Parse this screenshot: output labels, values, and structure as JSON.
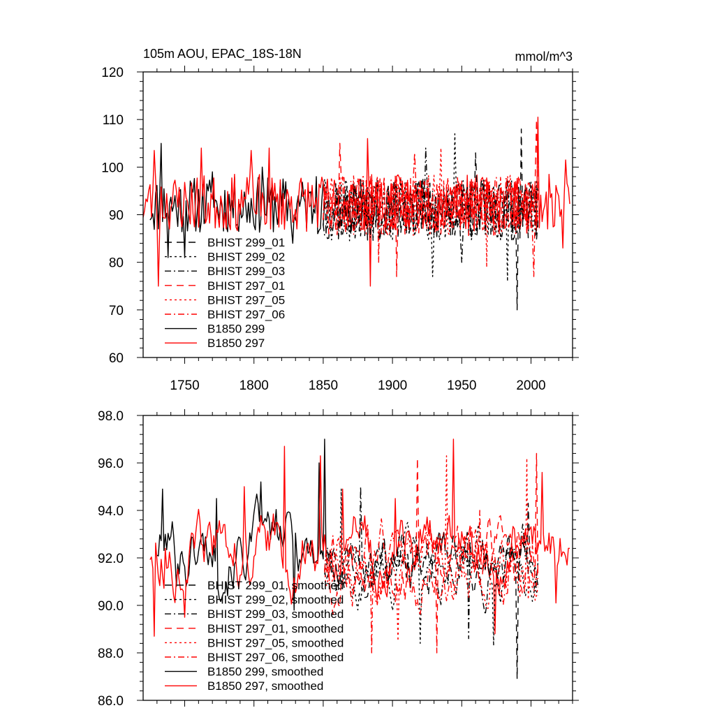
{
  "chart_data": [
    {
      "type": "line",
      "title": "105m AOU, EPAC_18S-18N",
      "units": "mmol/m^3",
      "xlim": [
        1720,
        2030
      ],
      "ylim": [
        60,
        120
      ],
      "xticks": [
        1750,
        1800,
        1850,
        1900,
        1950,
        2000
      ],
      "xtick_labels": [
        "1750",
        "1800",
        "1850",
        "1900",
        "1950",
        "2000"
      ],
      "yticks": [
        60,
        70,
        80,
        90,
        100,
        110,
        120
      ],
      "ytick_labels": [
        "60",
        "70",
        "80",
        "90",
        "100",
        "110",
        "120"
      ],
      "legend_position": "lower-left",
      "legend": [
        {
          "label": "BHIST 299_01",
          "color": "#000000",
          "dash": "long-dash"
        },
        {
          "label": "BHIST 299_02",
          "color": "#000000",
          "dash": "dot"
        },
        {
          "label": "BHIST 299_03",
          "color": "#000000",
          "dash": "dash-dot"
        },
        {
          "label": "BHIST 297_01",
          "color": "#ff0000",
          "dash": "long-dash"
        },
        {
          "label": "BHIST 297_05",
          "color": "#ff0000",
          "dash": "dot"
        },
        {
          "label": "BHIST 297_06",
          "color": "#ff0000",
          "dash": "dash-dot"
        },
        {
          "label": "B1850 299",
          "color": "#000000",
          "dash": "solid"
        },
        {
          "label": "B1850 297",
          "color": "#ff0000",
          "dash": "solid"
        }
      ],
      "series": [
        {
          "name": "B1850 299",
          "color": "#000000",
          "dash": "solid",
          "x_range": [
            1725,
            1850
          ],
          "mean": 92,
          "amplitude": 6,
          "seed": 11,
          "extremes": [
            [
              1733,
              105
            ],
            [
              1738,
              81
            ],
            [
              1750,
              81
            ],
            [
              1770,
              99
            ],
            [
              1806,
              100
            ],
            [
              1828,
              84
            ],
            [
              1845,
              98
            ]
          ]
        },
        {
          "name": "B1850 297",
          "color": "#ff0000",
          "dash": "solid",
          "x_range": [
            1720,
            2028
          ],
          "mean": 92.5,
          "amplitude": 6,
          "seed": 23,
          "extremes": [
            [
              1731,
              75
            ],
            [
              1728,
              103.5
            ],
            [
              1762,
              104
            ],
            [
              1798,
              103.5
            ],
            [
              1811,
              104
            ],
            [
              1882,
              106
            ],
            [
              1884,
              75
            ],
            [
              2005,
              110.5
            ],
            [
              2025,
              101.5
            ],
            [
              2023,
              83
            ]
          ]
        },
        {
          "name": "BHIST 299_01",
          "color": "#000000",
          "dash": "long-dash",
          "x_range": [
            1850,
            2005
          ],
          "mean": 91,
          "amplitude": 6.5,
          "seed": 37,
          "extremes": [
            [
              1960,
              103
            ],
            [
              1990,
              70
            ],
            [
              1993,
              108
            ]
          ]
        },
        {
          "name": "BHIST 299_02",
          "color": "#000000",
          "dash": "dot",
          "x_range": [
            1850,
            2005
          ],
          "mean": 91,
          "amplitude": 6.5,
          "seed": 41,
          "extremes": [
            [
              1945,
              107
            ],
            [
              1929,
              77
            ],
            [
              1983,
              76
            ]
          ]
        },
        {
          "name": "BHIST 299_03",
          "color": "#000000",
          "dash": "dash-dot",
          "x_range": [
            1850,
            2005
          ],
          "mean": 91,
          "amplitude": 6.5,
          "seed": 53,
          "extremes": [
            [
              1924,
              104
            ],
            [
              1950,
              80
            ]
          ]
        },
        {
          "name": "BHIST 297_01",
          "color": "#ff0000",
          "dash": "long-dash",
          "x_range": [
            1850,
            2005
          ],
          "mean": 92,
          "amplitude": 6.5,
          "seed": 61,
          "extremes": [
            [
              1862,
              105
            ],
            [
              1903,
              77
            ],
            [
              2004,
              110
            ]
          ]
        },
        {
          "name": "BHIST 297_05",
          "color": "#ff0000",
          "dash": "dot",
          "x_range": [
            1850,
            2005
          ],
          "mean": 92,
          "amplitude": 6.5,
          "seed": 71,
          "extremes": [
            [
              1935,
              104
            ],
            [
              1968,
              79
            ],
            [
              2005,
              109
            ]
          ]
        },
        {
          "name": "BHIST 297_06",
          "color": "#ff0000",
          "dash": "dash-dot",
          "x_range": [
            1850,
            2005
          ],
          "mean": 92,
          "amplitude": 6.5,
          "seed": 83,
          "extremes": [
            [
              1916,
              103
            ],
            [
              1890,
              80
            ],
            [
              2002,
              77
            ]
          ]
        }
      ]
    },
    {
      "type": "line",
      "title": "",
      "xlim": [
        1720,
        2030
      ],
      "ylim": [
        86,
        98
      ],
      "xticks": [
        1750,
        1800,
        1850,
        1900,
        1950,
        2000
      ],
      "yticks": [
        86,
        88,
        90,
        92,
        94,
        96,
        98
      ],
      "ytick_labels": [
        "86.0",
        "88.0",
        "90.0",
        "92.0",
        "94.0",
        "96.0",
        "98.0"
      ],
      "legend_position": "lower-left",
      "legend": [
        {
          "label": "BHIST 299_01, smoothed",
          "color": "#000000",
          "dash": "long-dash"
        },
        {
          "label": "BHIST 299_02, smoothed",
          "color": "#000000",
          "dash": "dot"
        },
        {
          "label": "BHIST 299_03, smoothed",
          "color": "#000000",
          "dash": "dash-dot"
        },
        {
          "label": "BHIST 297_01, smoothed",
          "color": "#ff0000",
          "dash": "long-dash"
        },
        {
          "label": "BHIST 297_05, smoothed",
          "color": "#ff0000",
          "dash": "dot"
        },
        {
          "label": "BHIST 297_06, smoothed",
          "color": "#ff0000",
          "dash": "dash-dot"
        },
        {
          "label": "B1850 299, smoothed",
          "color": "#000000",
          "dash": "solid"
        },
        {
          "label": "B1850 297, smoothed",
          "color": "#ff0000",
          "dash": "solid"
        }
      ],
      "series": [
        {
          "name": "B1850 299, smoothed",
          "color": "#000000",
          "dash": "solid",
          "x_range": [
            1730,
            1852
          ],
          "mean": 92.5,
          "amplitude": 1.8,
          "seed": 101,
          "extremes": [
            [
              1734,
              94.9
            ],
            [
              1744,
              90.8
            ],
            [
              1751,
              90.8
            ],
            [
              1773,
              94.5
            ],
            [
              1805,
              95.2
            ],
            [
              1829,
              89.8
            ],
            [
              1851,
              97.0
            ],
            [
              1847,
              96.0
            ]
          ]
        },
        {
          "name": "B1850 297, smoothed",
          "color": "#ff0000",
          "dash": "solid",
          "x_range": [
            1725,
            2028
          ],
          "mean": 92.3,
          "amplitude": 1.8,
          "seed": 113,
          "extremes": [
            [
              1728,
              88.7
            ],
            [
              1736,
              92.4
            ],
            [
              1750,
              89.5
            ],
            [
              1793,
              95.0
            ],
            [
              1822,
              96.7
            ],
            [
              1848,
              96.3
            ],
            [
              1864,
              94.9
            ],
            [
              1902,
              94.5
            ],
            [
              1944,
              97.0
            ],
            [
              1974,
              88.8
            ],
            [
              2008,
              95.6
            ],
            [
              2018,
              90.1
            ],
            [
              2026,
              91.7
            ]
          ]
        },
        {
          "name": "BHIST 299_01, smoothed",
          "color": "#000000",
          "dash": "long-dash",
          "x_range": [
            1851,
            2005
          ],
          "mean": 91.8,
          "amplitude": 1.5,
          "seed": 131,
          "extremes": [
            [
              1990,
              86.9
            ],
            [
              1998,
              94.3
            ]
          ]
        },
        {
          "name": "BHIST 299_02, smoothed",
          "color": "#000000",
          "dash": "dot",
          "x_range": [
            1851,
            2005
          ],
          "mean": 91.6,
          "amplitude": 1.5,
          "seed": 137,
          "extremes": [
            [
              1863,
              94.9
            ],
            [
              1920,
              88.4
            ],
            [
              1973,
              88.3
            ]
          ]
        },
        {
          "name": "BHIST 299_03, smoothed",
          "color": "#000000",
          "dash": "dash-dot",
          "x_range": [
            1851,
            2005
          ],
          "mean": 91.8,
          "amplitude": 1.5,
          "seed": 149,
          "extremes": [
            [
              1877,
              95.0
            ],
            [
              1955,
              88.6
            ]
          ]
        },
        {
          "name": "BHIST 297_01, smoothed",
          "color": "#ff0000",
          "dash": "long-dash",
          "x_range": [
            1851,
            2005
          ],
          "mean": 91.8,
          "amplitude": 1.7,
          "seed": 157,
          "extremes": [
            [
              1918,
              96.2
            ],
            [
              1932,
              88.0
            ],
            [
              2004,
              96.4
            ]
          ]
        },
        {
          "name": "BHIST 297_05, smoothed",
          "color": "#ff0000",
          "dash": "dot",
          "x_range": [
            1851,
            2005
          ],
          "mean": 91.8,
          "amplitude": 1.7,
          "seed": 163,
          "extremes": [
            [
              1939,
              96.3
            ],
            [
              1904,
              88.5
            ],
            [
              1997,
              96.2
            ]
          ]
        },
        {
          "name": "BHIST 297_06, smoothed",
          "color": "#ff0000",
          "dash": "dash-dot",
          "x_range": [
            1851,
            2005
          ],
          "mean": 91.8,
          "amplitude": 1.7,
          "seed": 173,
          "extremes": [
            [
              1885,
              88.0
            ],
            [
              1963,
              94.0
            ]
          ]
        }
      ]
    }
  ]
}
